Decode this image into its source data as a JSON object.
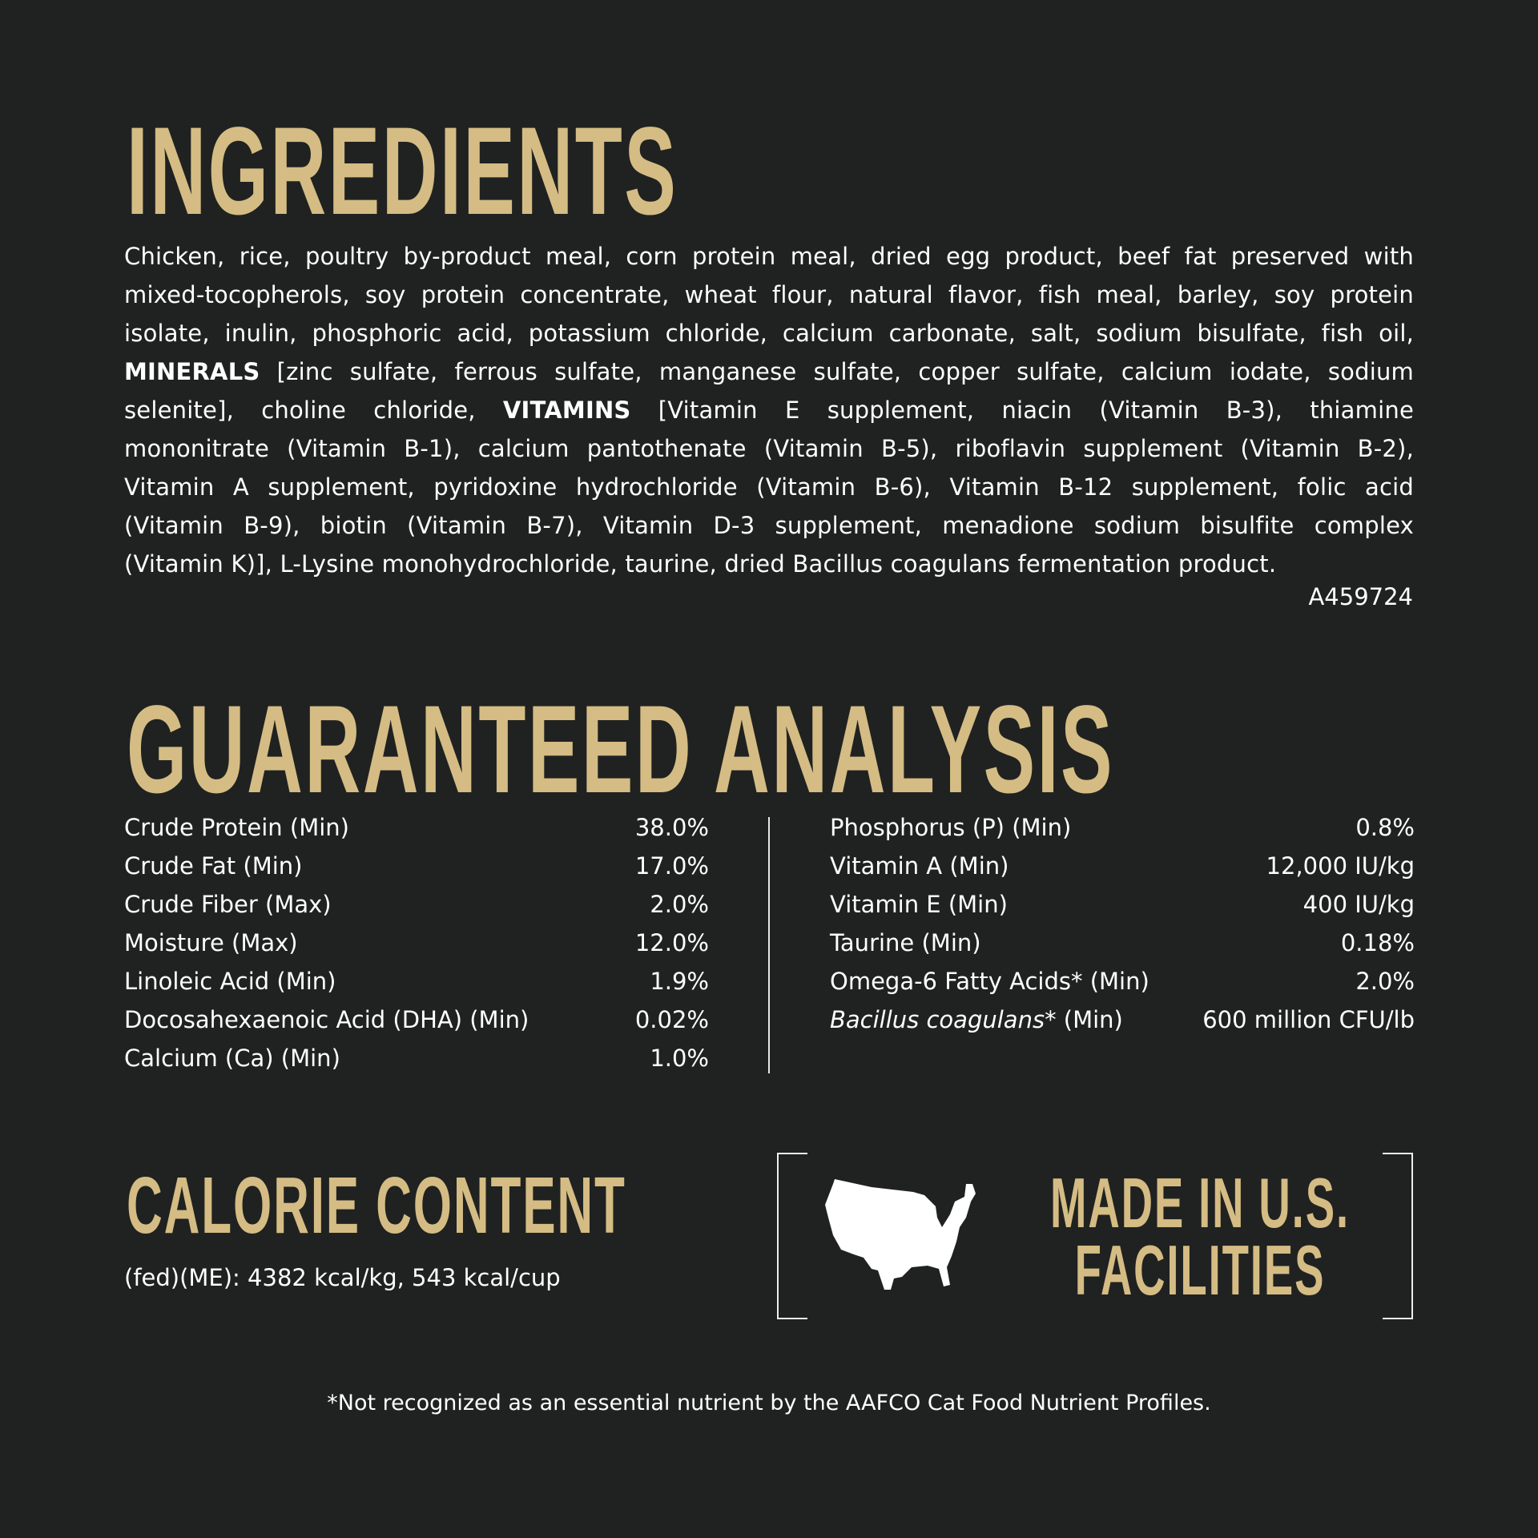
{
  "colors": {
    "background": "#202221",
    "accent": "#d4bc84",
    "text": "#ffffff"
  },
  "ingredients": {
    "title": "INGREDIENTS",
    "lines": [
      {
        "pre": "Chicken, rice, poultry by-product meal, corn protein meal, dried egg product, beef fat preserved with",
        "bold": "",
        "post": ""
      },
      {
        "pre": "mixed-tocopherols, soy protein concentrate, wheat flour, natural flavor, fish meal, barley, soy protein",
        "bold": "",
        "post": ""
      },
      {
        "pre": "isolate, inulin, phosphoric acid, potassium chloride, calcium carbonate, salt, sodium bisulfate, fish oil,",
        "bold": "",
        "post": ""
      },
      {
        "pre": "",
        "bold": "MINERALS",
        "post": " [zinc sulfate, ferrous sulfate, manganese sulfate, copper sulfate, calcium iodate, sodium"
      },
      {
        "pre": "selenite], choline chloride, ",
        "bold": "VITAMINS",
        "post": " [Vitamin E supplement, niacin (Vitamin B-3), thiamine"
      },
      {
        "pre": "mononitrate (Vitamin B-1), calcium pantothenate (Vitamin B-5), riboflavin supplement (Vitamin B-2),",
        "bold": "",
        "post": ""
      },
      {
        "pre": "Vitamin A supplement, pyridoxine hydrochloride (Vitamin B-6), Vitamin B-12 supplement, folic acid",
        "bold": "",
        "post": ""
      },
      {
        "pre": "(Vitamin B-9), biotin (Vitamin B-7), Vitamin D-3 supplement, menadione sodium bisulfite complex",
        "bold": "",
        "post": ""
      },
      {
        "pre": "(Vitamin K)], L-Lysine monohydrochloride, taurine, dried Bacillus coagulans fermentation product.",
        "bold": "",
        "post": ""
      }
    ],
    "code": "A459724"
  },
  "analysis": {
    "title": "GUARANTEED ANALYSIS",
    "left": [
      {
        "label": "Crude Protein (Min)",
        "value": "38.0%"
      },
      {
        "label": "Crude Fat (Min)",
        "value": "17.0%"
      },
      {
        "label": "Crude Fiber (Max)",
        "value": "2.0%"
      },
      {
        "label": "Moisture (Max)",
        "value": "12.0%"
      },
      {
        "label": "Linoleic Acid (Min)",
        "value": "1.9%"
      },
      {
        "label": "Docosahexaenoic Acid (DHA) (Min)",
        "value": "0.02%"
      },
      {
        "label": "Calcium (Ca) (Min)",
        "value": "1.0%"
      }
    ],
    "right": [
      {
        "label": "Phosphorus (P) (Min)",
        "value": "0.8%"
      },
      {
        "label": "Vitamin A (Min)",
        "value": "12,000 IU/kg"
      },
      {
        "label": "Vitamin E (Min)",
        "value": "400 IU/kg"
      },
      {
        "label": "Taurine (Min)",
        "value": "0.18%"
      },
      {
        "label": "Omega-6 Fatty Acids* (Min)",
        "value": "2.0%"
      },
      {
        "label_italic": "Bacillus coagulans",
        "label": "* (Min)",
        "value": "600 million CFU/lb"
      }
    ]
  },
  "calorie": {
    "title": "CALORIE CONTENT",
    "text": "(fed)(ME): 4382 kcal/kg, 543 kcal/cup"
  },
  "made_in": {
    "line1": "MADE IN U.S.",
    "line2": "FACILITIES",
    "icon": "usa-map-icon"
  },
  "footnote": "*Not recognized as an essential nutrient by the AAFCO Cat Food Nutrient Profiles."
}
